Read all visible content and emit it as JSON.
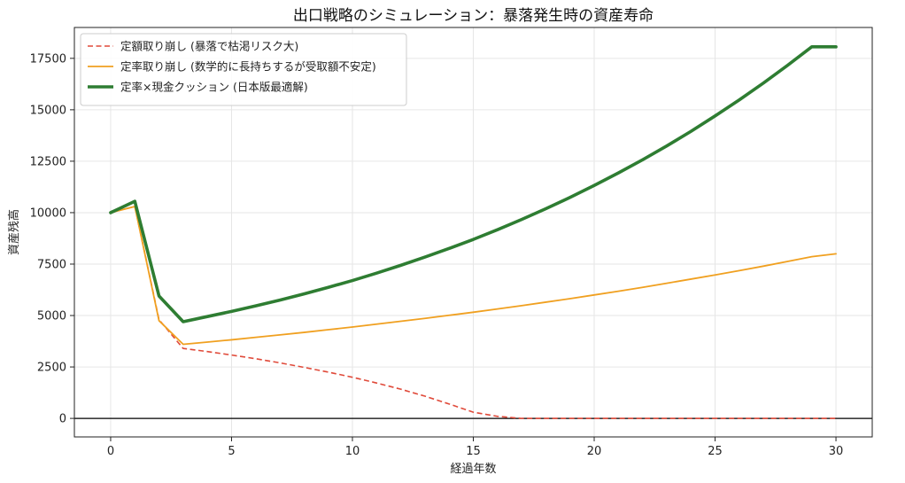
{
  "chart_data": {
    "type": "line",
    "title": "出口戦略のシミュレーション：暴落発生時の資産寿命",
    "xlabel": "経過年数",
    "ylabel": "資産残高",
    "xlim": [
      -1.5,
      31.5
    ],
    "ylim": [
      -900,
      19000
    ],
    "xticks": [
      0,
      5,
      10,
      15,
      20,
      25,
      30
    ],
    "yticks": [
      0,
      2500,
      5000,
      7500,
      10000,
      12500,
      15000,
      17500
    ],
    "grid": true,
    "legend_position": "top-left",
    "zero_line": true,
    "series": [
      {
        "name": "定額取り崩し (暴落で枯渇リスク大)",
        "color": "#e04a3a",
        "style": "dashed",
        "width": 1.6,
        "x": [
          0,
          1,
          2,
          3,
          4,
          5,
          6,
          7,
          8,
          9,
          10,
          11,
          12,
          13,
          14,
          15,
          16,
          17,
          18,
          19,
          20,
          21,
          22,
          23,
          24,
          25,
          26,
          27,
          28,
          29,
          30
        ],
        "y": [
          10000,
          10300,
          4800,
          3400,
          3250,
          3080,
          2900,
          2700,
          2480,
          2250,
          2000,
          1720,
          1420,
          1080,
          700,
          300,
          100,
          0,
          0,
          0,
          0,
          0,
          0,
          0,
          0,
          0,
          0,
          0,
          0,
          0,
          0
        ]
      },
      {
        "name": "定率取り崩し (数学的に長持ちするが受取額不安定)",
        "color": "#f0a020",
        "style": "solid",
        "width": 1.8,
        "x": [
          0,
          1,
          2,
          3,
          4,
          5,
          6,
          7,
          8,
          9,
          10,
          11,
          12,
          13,
          14,
          15,
          16,
          17,
          18,
          19,
          20,
          21,
          22,
          23,
          24,
          25,
          26,
          27,
          28,
          29,
          30
        ],
        "y": [
          10000,
          10300,
          4750,
          3600,
          3710,
          3820,
          3940,
          4060,
          4180,
          4310,
          4440,
          4580,
          4720,
          4860,
          5010,
          5160,
          5320,
          5480,
          5650,
          5820,
          6000,
          6180,
          6370,
          6570,
          6770,
          6970,
          7180,
          7400,
          7630,
          7860,
          8000
        ]
      },
      {
        "name": "定率×現金クッション (日本版最適解)",
        "color": "#2e7d32",
        "style": "solid",
        "width": 3.6,
        "x": [
          0,
          1,
          2,
          3,
          4,
          5,
          6,
          7,
          8,
          9,
          10,
          11,
          12,
          13,
          14,
          15,
          16,
          17,
          18,
          19,
          20,
          21,
          22,
          23,
          24,
          25,
          26,
          27,
          28,
          29,
          30
        ],
        "y": [
          10000,
          10550,
          5950,
          4700,
          4950,
          5200,
          5470,
          5750,
          6050,
          6370,
          6700,
          7060,
          7440,
          7840,
          8260,
          8700,
          9170,
          9670,
          10190,
          10740,
          11320,
          11930,
          12570,
          13240,
          13950,
          14700,
          15480,
          16300,
          17160,
          18060,
          18060
        ]
      }
    ]
  }
}
